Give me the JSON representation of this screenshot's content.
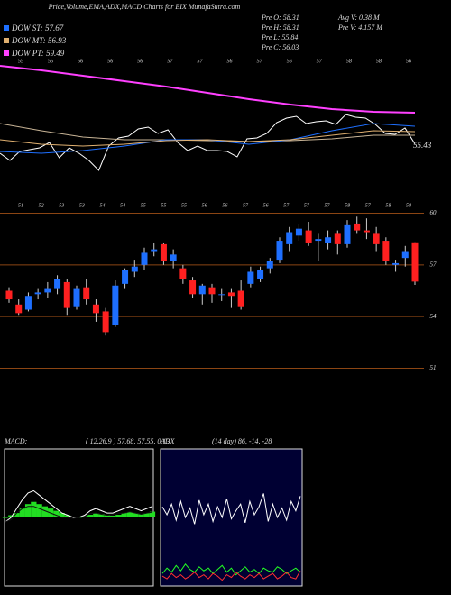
{
  "header": {
    "title": "Price,Volume,EMA,ADX,MACD Charts for EIX MunafaSutra.com",
    "info": [
      "Pre O: 58.31",
      "Pre H: 58.31",
      "Pre L: 55.84",
      "Pre C: 56.03",
      "Avg V: 0.38 M",
      "Pre V: 4.157 M"
    ]
  },
  "chart_data": [
    {
      "type": "line",
      "ylim": [
        50,
        66
      ],
      "end_label": "55.43",
      "top_labels": [
        "55",
        "55",
        "56",
        "56",
        "56",
        "57",
        "57",
        "56",
        "57",
        "56",
        "57",
        "58",
        "58",
        "56"
      ],
      "bottom_labels": [
        "51",
        "52",
        "53",
        "53",
        "54",
        "54",
        "55",
        "55",
        "55",
        "56",
        "56",
        "57",
        "56",
        "57",
        "57",
        "57",
        "58",
        "57",
        "58",
        "58"
      ],
      "series": [
        {
          "color": "#ffffff",
          "values": [
            55.0,
            54.2,
            55.2,
            55.4,
            55.6,
            56.2,
            54.5,
            55.6,
            55.0,
            54.2,
            53.1,
            55.8,
            56.7,
            56.9,
            57.7,
            57.9,
            57.2,
            57.6,
            56.2,
            55.3,
            55.8,
            55.3,
            55.3,
            55.2,
            54.6,
            56.6,
            56.7,
            57.2,
            58.4,
            58.9,
            59.1,
            58.3,
            58.5,
            58.6,
            58.2,
            59.3,
            59.0,
            58.9,
            58.2,
            57.2,
            57.1,
            57.8,
            56.03
          ]
        },
        {
          "color": "#c8b496",
          "values": [
            58.3,
            57.5,
            56.8,
            56.5,
            56.5,
            56.4,
            56.3,
            56.4,
            56.6,
            57.0,
            57.0
          ]
        },
        {
          "name": "DOW ST: 57.67",
          "color": "#1e6fff",
          "values": [
            55.2,
            55.0,
            55.3,
            55.8,
            56.5,
            56.5,
            56.0,
            56.5,
            57.5,
            58.3,
            58.0
          ]
        },
        {
          "name": "DOW MT: 56.93",
          "color": "#e0b070",
          "values": [
            56.5,
            56.0,
            55.8,
            56.0,
            56.4,
            56.5,
            56.3,
            56.5,
            57.0,
            57.5,
            57.4
          ]
        },
        {
          "name": "DOW PT: 59.49",
          "color": "#ff40ff",
          "values": [
            64.7,
            64.2,
            63.6,
            63.0,
            62.4,
            61.7,
            61.0,
            60.4,
            59.9,
            59.6,
            59.5
          ]
        }
      ]
    },
    {
      "type": "candlestick",
      "ylim": [
        50.4,
        60.6
      ],
      "yticks": [
        60,
        57,
        54,
        51
      ],
      "up_color": "#1e6fff",
      "down_color": "#ff2020",
      "ohlc": [
        [
          55.5,
          55.7,
          54.8,
          55.0
        ],
        [
          54.7,
          55.0,
          54.1,
          54.2
        ],
        [
          54.4,
          55.4,
          54.3,
          55.2
        ],
        [
          55.3,
          55.6,
          55.0,
          55.4
        ],
        [
          55.4,
          56.0,
          55.1,
          55.6
        ],
        [
          55.6,
          56.4,
          55.3,
          56.2
        ],
        [
          56.0,
          56.2,
          54.1,
          54.5
        ],
        [
          54.6,
          55.8,
          54.4,
          55.6
        ],
        [
          55.7,
          56.2,
          54.7,
          55.0
        ],
        [
          54.7,
          55.0,
          53.7,
          54.2
        ],
        [
          54.3,
          54.5,
          52.9,
          53.1
        ],
        [
          53.5,
          56.1,
          53.4,
          55.8
        ],
        [
          55.9,
          56.8,
          55.6,
          56.7
        ],
        [
          56.6,
          57.3,
          56.3,
          56.9
        ],
        [
          57.0,
          58.0,
          56.7,
          57.7
        ],
        [
          57.8,
          58.3,
          57.5,
          57.9
        ],
        [
          58.2,
          58.3,
          57.0,
          57.2
        ],
        [
          57.2,
          57.9,
          56.8,
          57.6
        ],
        [
          56.8,
          57.0,
          55.9,
          56.2
        ],
        [
          56.1,
          56.3,
          55.1,
          55.3
        ],
        [
          55.3,
          55.9,
          54.7,
          55.8
        ],
        [
          55.7,
          55.9,
          54.8,
          55.3
        ],
        [
          55.3,
          55.6,
          54.9,
          55.3
        ],
        [
          55.4,
          55.6,
          54.5,
          55.2
        ],
        [
          55.5,
          56.1,
          54.4,
          54.6
        ],
        [
          55.9,
          56.9,
          55.7,
          56.6
        ],
        [
          56.2,
          56.9,
          56.0,
          56.7
        ],
        [
          56.8,
          57.4,
          56.5,
          57.2
        ],
        [
          57.3,
          58.6,
          57.1,
          58.4
        ],
        [
          58.2,
          59.2,
          57.8,
          58.9
        ],
        [
          58.7,
          59.4,
          58.4,
          59.1
        ],
        [
          59.0,
          59.5,
          58.1,
          58.3
        ],
        [
          58.4,
          58.8,
          57.2,
          58.5
        ],
        [
          58.3,
          59.0,
          57.9,
          58.6
        ],
        [
          58.8,
          59.0,
          57.6,
          58.2
        ],
        [
          58.2,
          59.6,
          58.0,
          59.3
        ],
        [
          59.4,
          59.8,
          58.8,
          59.0
        ],
        [
          59.0,
          59.7,
          58.5,
          58.9
        ],
        [
          58.8,
          59.2,
          57.8,
          58.2
        ],
        [
          58.4,
          58.6,
          57.0,
          57.2
        ],
        [
          57.0,
          57.3,
          56.6,
          57.1
        ],
        [
          57.4,
          58.1,
          56.9,
          57.8
        ],
        [
          58.31,
          58.31,
          55.84,
          56.03
        ]
      ]
    },
    {
      "type": "macd",
      "title": "MACD:",
      "subtitle": "( 12,26,9 ) 57.68, 57.55, 0.13",
      "ylim": [
        -1.5,
        1.5
      ],
      "hist_color": "#22dd22",
      "histogram": [
        0.0,
        0.05,
        0.1,
        0.2,
        0.3,
        0.35,
        0.3,
        0.25,
        0.2,
        0.15,
        0.1,
        0.05,
        0.02,
        0.0,
        0.03,
        0.06,
        0.1,
        0.08,
        0.05,
        0.04,
        0.06,
        0.1,
        0.12,
        0.1,
        0.08,
        0.1,
        0.13
      ],
      "series": [
        {
          "color": "#ffffff",
          "values": [
            -0.1,
            0.0,
            0.2,
            0.4,
            0.55,
            0.6,
            0.5,
            0.4,
            0.3,
            0.2,
            0.1,
            0.05,
            0.0,
            0.0,
            0.05,
            0.15,
            0.2,
            0.15,
            0.1,
            0.1,
            0.15,
            0.2,
            0.25,
            0.2,
            0.15,
            0.2,
            0.25
          ]
        },
        {
          "color": "#111111",
          "values": [
            -0.1,
            -0.05,
            0.1,
            0.2,
            0.25,
            0.25,
            0.2,
            0.15,
            0.1,
            0.05,
            0.0,
            0.0,
            -0.02,
            0.0,
            0.02,
            0.09,
            0.1,
            0.07,
            0.05,
            0.06,
            0.09,
            0.1,
            0.13,
            0.1,
            0.07,
            0.1,
            0.12
          ]
        }
      ]
    },
    {
      "type": "line",
      "title": "ADX",
      "subtitle": "(14 day) 86, -14, -28",
      "ylim": [
        0,
        100
      ],
      "series": [
        {
          "color": "#ffffff",
          "values": [
            58,
            52,
            60,
            48,
            62,
            50,
            57,
            45,
            63,
            52,
            60,
            47,
            58,
            50,
            64,
            49,
            55,
            60,
            46,
            62,
            52,
            58,
            68,
            47,
            60,
            50,
            57,
            48,
            62,
            55,
            66
          ]
        },
        {
          "color": "#22ff22",
          "values": [
            8,
            12,
            9,
            14,
            10,
            15,
            11,
            9,
            13,
            10,
            12,
            8,
            11,
            14,
            9,
            12,
            7,
            10,
            13,
            9,
            11,
            8,
            12,
            10,
            9,
            13,
            11,
            8,
            10,
            12,
            9
          ]
        },
        {
          "color": "#ff3030",
          "values": [
            6,
            4,
            8,
            5,
            7,
            4,
            6,
            9,
            5,
            7,
            4,
            8,
            6,
            3,
            7,
            5,
            9,
            6,
            4,
            7,
            5,
            8,
            4,
            6,
            8,
            4,
            6,
            9,
            5,
            4,
            10
          ]
        }
      ]
    }
  ]
}
